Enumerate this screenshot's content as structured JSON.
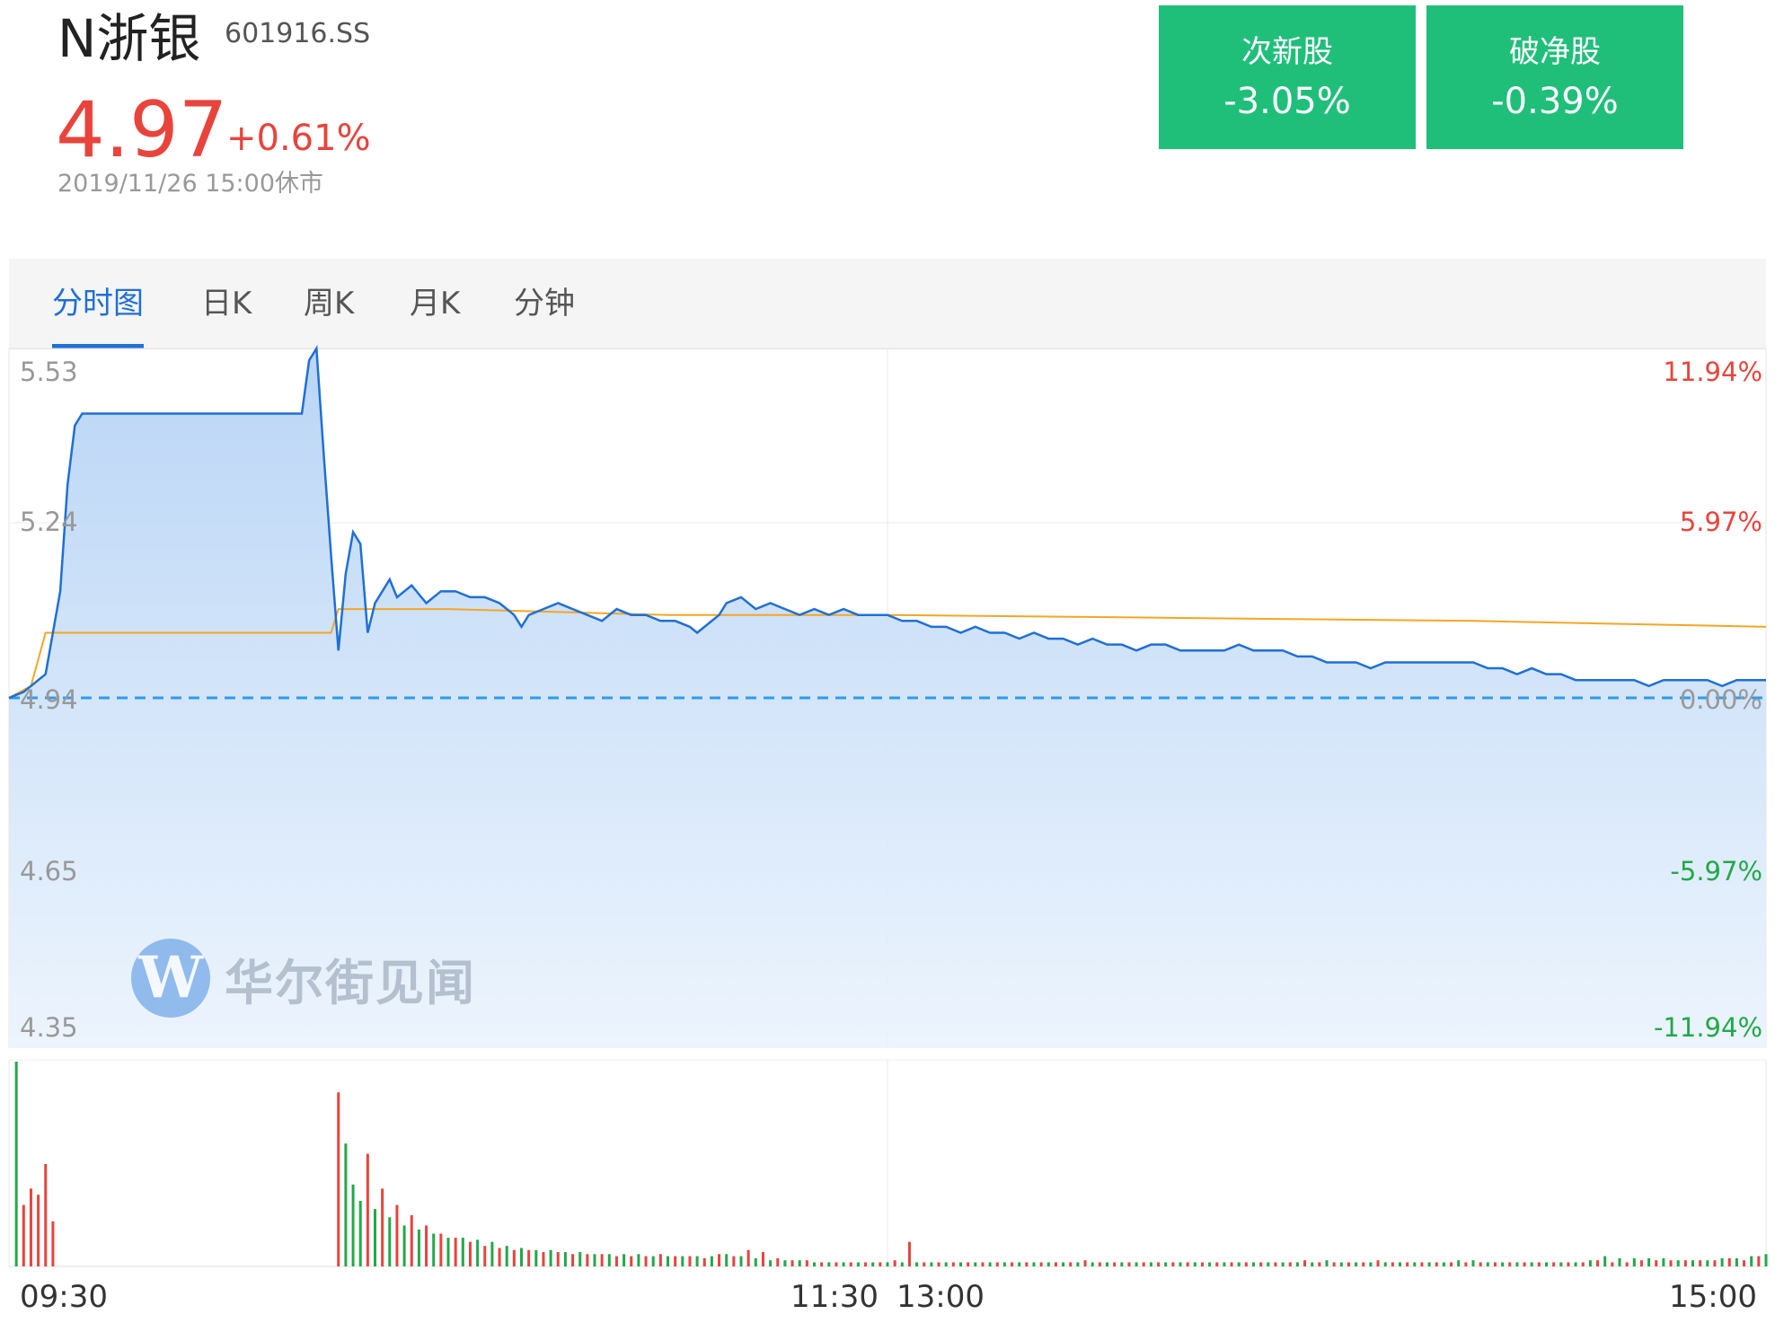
{
  "header": {
    "stock_name": "N浙银",
    "stock_code": "601916.SS",
    "price": "4.97",
    "change_pct": "+0.61%",
    "time_status": "2019/11/26 15:00休市"
  },
  "badges": [
    {
      "label": "次新股",
      "value": "-3.05%"
    },
    {
      "label": "破净股",
      "value": "-0.39%"
    }
  ],
  "tabs": [
    {
      "label": "分时图",
      "active": true
    },
    {
      "label": "日K",
      "active": false
    },
    {
      "label": "周K",
      "active": false
    },
    {
      "label": "月K",
      "active": false
    },
    {
      "label": "分钟",
      "active": false
    }
  ],
  "watermark": {
    "logo": "W",
    "text": "华尔街见闻"
  },
  "colors": {
    "up": "#e8443c",
    "down": "#22a84a",
    "price_line": "#1f6fd6",
    "avg_line": "#f5a623",
    "baseline": "#2d9cf0",
    "badge_bg": "#1fbf7a"
  },
  "chart_data": {
    "type": "line",
    "title": "",
    "y_ticks": [
      "5.53",
      "5.24",
      "4.94",
      "4.65",
      "4.35"
    ],
    "pct_ticks": [
      "11.94%",
      "5.97%",
      "0.00%",
      "-5.97%",
      "-11.94%"
    ],
    "x_ticks": [
      "09:30",
      "11:30",
      "13:00",
      "15:00"
    ],
    "ylim": [
      4.35,
      5.53
    ],
    "prev_close": 4.94,
    "x_minutes_range": [
      0,
      240
    ],
    "price_series": {
      "name": "",
      "points": [
        [
          0,
          4.94
        ],
        [
          2,
          4.95
        ],
        [
          5,
          4.98
        ],
        [
          7,
          5.12
        ],
        [
          8,
          5.3
        ],
        [
          9,
          5.4
        ],
        [
          10,
          5.42
        ],
        [
          40,
          5.42
        ],
        [
          41,
          5.51
        ],
        [
          42,
          5.53
        ],
        [
          43,
          5.35
        ],
        [
          44,
          5.18
        ],
        [
          45,
          5.02
        ],
        [
          46,
          5.15
        ],
        [
          47,
          5.22
        ],
        [
          48,
          5.2
        ],
        [
          49,
          5.05
        ],
        [
          50,
          5.1
        ],
        [
          51,
          5.12
        ],
        [
          52,
          5.14
        ],
        [
          53,
          5.11
        ],
        [
          55,
          5.13
        ],
        [
          57,
          5.1
        ],
        [
          59,
          5.12
        ],
        [
          61,
          5.12
        ],
        [
          63,
          5.11
        ],
        [
          65,
          5.11
        ],
        [
          67,
          5.1
        ],
        [
          69,
          5.08
        ],
        [
          70,
          5.06
        ],
        [
          71,
          5.08
        ],
        [
          73,
          5.09
        ],
        [
          75,
          5.1
        ],
        [
          77,
          5.09
        ],
        [
          79,
          5.08
        ],
        [
          81,
          5.07
        ],
        [
          83,
          5.09
        ],
        [
          85,
          5.08
        ],
        [
          87,
          5.08
        ],
        [
          89,
          5.07
        ],
        [
          91,
          5.07
        ],
        [
          93,
          5.06
        ],
        [
          94,
          5.05
        ],
        [
          95,
          5.06
        ],
        [
          97,
          5.08
        ],
        [
          98,
          5.1
        ],
        [
          100,
          5.11
        ],
        [
          102,
          5.09
        ],
        [
          104,
          5.1
        ],
        [
          106,
          5.09
        ],
        [
          108,
          5.08
        ],
        [
          110,
          5.09
        ],
        [
          112,
          5.08
        ],
        [
          114,
          5.09
        ],
        [
          116,
          5.08
        ],
        [
          118,
          5.08
        ],
        [
          120,
          5.08
        ],
        [
          122,
          5.07
        ],
        [
          124,
          5.07
        ],
        [
          126,
          5.06
        ],
        [
          128,
          5.06
        ],
        [
          130,
          5.05
        ],
        [
          132,
          5.06
        ],
        [
          134,
          5.05
        ],
        [
          136,
          5.05
        ],
        [
          138,
          5.04
        ],
        [
          140,
          5.05
        ],
        [
          142,
          5.04
        ],
        [
          144,
          5.04
        ],
        [
          146,
          5.03
        ],
        [
          148,
          5.04
        ],
        [
          150,
          5.03
        ],
        [
          152,
          5.03
        ],
        [
          154,
          5.02
        ],
        [
          156,
          5.03
        ],
        [
          158,
          5.03
        ],
        [
          160,
          5.02
        ],
        [
          162,
          5.02
        ],
        [
          164,
          5.02
        ],
        [
          166,
          5.02
        ],
        [
          168,
          5.03
        ],
        [
          170,
          5.02
        ],
        [
          172,
          5.02
        ],
        [
          174,
          5.02
        ],
        [
          176,
          5.01
        ],
        [
          178,
          5.01
        ],
        [
          180,
          5.0
        ],
        [
          182,
          5.0
        ],
        [
          184,
          5.0
        ],
        [
          186,
          4.99
        ],
        [
          188,
          5.0
        ],
        [
          190,
          5.0
        ],
        [
          192,
          5.0
        ],
        [
          194,
          5.0
        ],
        [
          196,
          5.0
        ],
        [
          198,
          5.0
        ],
        [
          200,
          5.0
        ],
        [
          202,
          4.99
        ],
        [
          204,
          4.99
        ],
        [
          206,
          4.98
        ],
        [
          208,
          4.99
        ],
        [
          210,
          4.98
        ],
        [
          212,
          4.98
        ],
        [
          214,
          4.97
        ],
        [
          216,
          4.97
        ],
        [
          218,
          4.97
        ],
        [
          220,
          4.97
        ],
        [
          222,
          4.97
        ],
        [
          224,
          4.96
        ],
        [
          226,
          4.97
        ],
        [
          228,
          4.97
        ],
        [
          230,
          4.97
        ],
        [
          232,
          4.97
        ],
        [
          234,
          4.96
        ],
        [
          236,
          4.97
        ],
        [
          238,
          4.97
        ],
        [
          240,
          4.97
        ]
      ]
    },
    "avg_series": {
      "name": "",
      "points": [
        [
          0,
          4.94
        ],
        [
          3,
          4.96
        ],
        [
          5,
          5.05
        ],
        [
          20,
          5.05
        ],
        [
          44,
          5.05
        ],
        [
          45,
          5.09
        ],
        [
          60,
          5.09
        ],
        [
          90,
          5.08
        ],
        [
          120,
          5.08
        ],
        [
          160,
          5.075
        ],
        [
          200,
          5.07
        ],
        [
          240,
          5.06
        ]
      ]
    },
    "volume": {
      "up_minutes": [
        2,
        3,
        4,
        5,
        6,
        45,
        49,
        51,
        53,
        55,
        57,
        59,
        61,
        63,
        65,
        67,
        69,
        71,
        73,
        75,
        77,
        79,
        81,
        83,
        85,
        87,
        89,
        91,
        93,
        95,
        97,
        99,
        101,
        103,
        105,
        107,
        109,
        111,
        113,
        115,
        117,
        119,
        121,
        123,
        125,
        127,
        129,
        131,
        133,
        135,
        137,
        139,
        141,
        143,
        145,
        147,
        149,
        151,
        153,
        155,
        157,
        159,
        161,
        163,
        165,
        167,
        169,
        171,
        173,
        175,
        177,
        179,
        181,
        183,
        185,
        187,
        189,
        191,
        193,
        195,
        197,
        199,
        201,
        203,
        205,
        207,
        209,
        211,
        213,
        215,
        217,
        219,
        221,
        223,
        225,
        227,
        229,
        231,
        233,
        235,
        237,
        239
      ],
      "up_values": [
        30,
        38,
        35,
        50,
        22,
        85,
        55,
        38,
        30,
        25,
        20,
        16,
        14,
        12,
        10,
        9,
        8,
        8,
        7,
        7,
        6,
        6,
        6,
        5,
        5,
        5,
        6,
        5,
        5,
        4,
        6,
        5,
        8,
        7,
        4,
        3,
        3,
        2,
        2,
        2,
        2,
        2,
        3,
        12,
        2,
        2,
        2,
        2,
        2,
        2,
        2,
        2,
        2,
        2,
        2,
        3,
        2,
        2,
        2,
        2,
        2,
        2,
        2,
        2,
        2,
        2,
        2,
        2,
        2,
        2,
        3,
        2,
        2,
        2,
        2,
        3,
        2,
        2,
        2,
        2,
        2,
        2,
        2,
        2,
        2,
        2,
        2,
        2,
        2,
        2,
        3,
        2,
        2,
        3,
        3,
        3,
        3,
        3,
        3,
        4,
        3,
        5
      ],
      "down_minutes": [
        1,
        46,
        47,
        48,
        50,
        52,
        54,
        56,
        58,
        60,
        62,
        64,
        66,
        68,
        70,
        72,
        74,
        76,
        78,
        80,
        82,
        84,
        86,
        88,
        90,
        92,
        94,
        96,
        98,
        100,
        102,
        104,
        106,
        108,
        110,
        112,
        114,
        116,
        118,
        120,
        122,
        124,
        126,
        128,
        130,
        132,
        134,
        136,
        138,
        140,
        142,
        144,
        146,
        148,
        150,
        152,
        154,
        156,
        158,
        160,
        162,
        164,
        166,
        168,
        170,
        172,
        174,
        176,
        178,
        180,
        182,
        184,
        186,
        188,
        190,
        192,
        194,
        196,
        198,
        200,
        202,
        204,
        206,
        208,
        210,
        212,
        214,
        216,
        218,
        220,
        222,
        224,
        226,
        228,
        230,
        232,
        234,
        236,
        238,
        240
      ],
      "down_values": [
        100,
        60,
        40,
        32,
        28,
        24,
        20,
        18,
        16,
        14,
        14,
        13,
        12,
        10,
        9,
        8,
        8,
        7,
        7,
        6,
        6,
        6,
        6,
        5,
        5,
        5,
        5,
        5,
        6,
        5,
        4,
        3,
        3,
        3,
        2,
        2,
        2,
        2,
        2,
        2,
        2,
        2,
        2,
        2,
        2,
        2,
        2,
        2,
        2,
        2,
        2,
        2,
        2,
        2,
        2,
        2,
        2,
        2,
        2,
        2,
        2,
        2,
        2,
        2,
        2,
        2,
        2,
        2,
        2,
        3,
        2,
        2,
        2,
        2,
        2,
        2,
        2,
        2,
        3,
        3,
        2,
        2,
        2,
        2,
        2,
        2,
        2,
        3,
        5,
        4,
        4,
        4,
        4,
        3,
        3,
        3,
        4,
        4,
        5,
        6
      ],
      "ymax": 100
    }
  }
}
